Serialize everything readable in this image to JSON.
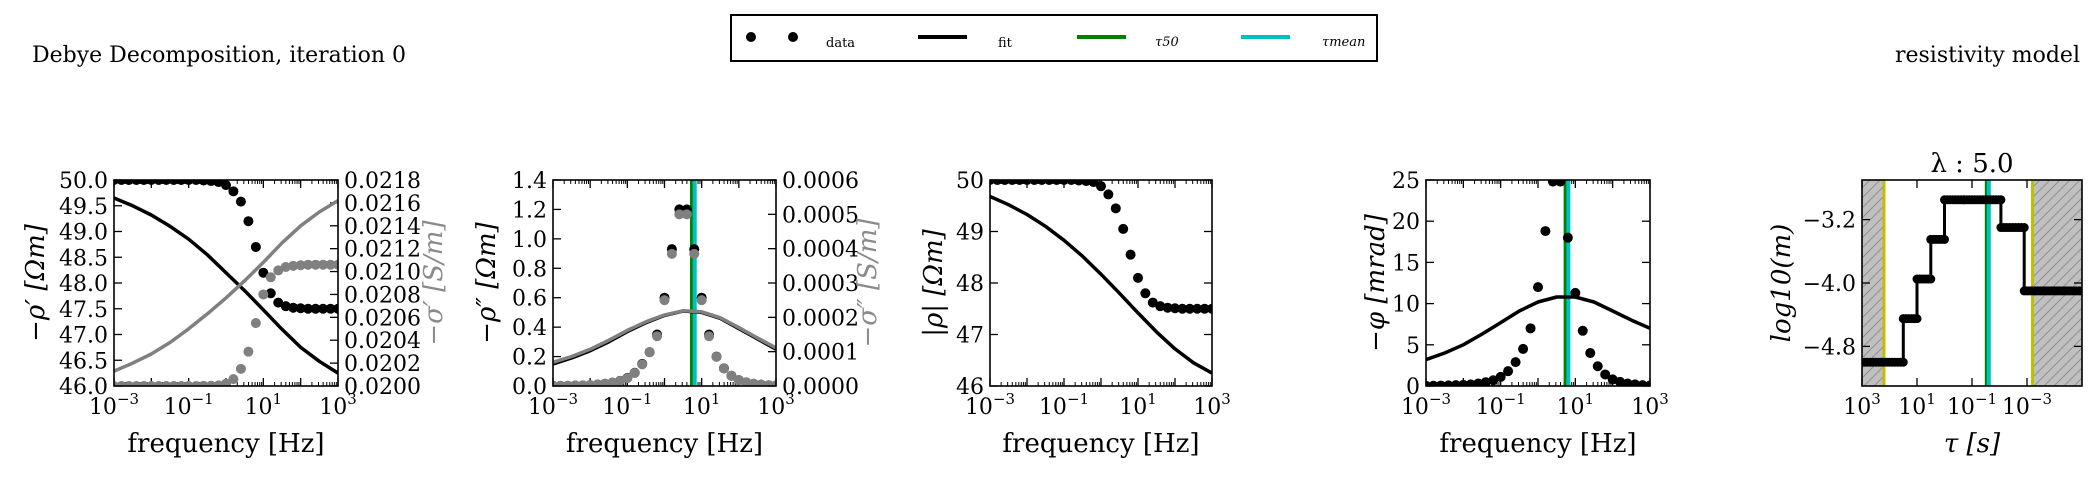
{
  "figure": {
    "left_title": "Debye Decomposition, iteration 0",
    "right_title": "resistivity model"
  },
  "legend": {
    "items": [
      {
        "label": "data",
        "kind": "markers",
        "color": "#000000"
      },
      {
        "label": "fit",
        "kind": "line",
        "color": "#000000"
      },
      {
        "label": "τ50",
        "kind": "line",
        "color": "#008000"
      },
      {
        "label": "τmean",
        "kind": "line",
        "color": "#00bfbf"
      }
    ]
  },
  "colors": {
    "data": "#000000",
    "data_secondary": "#808080",
    "fit": "#000000",
    "fit_secondary": "#808080",
    "tau50": "#008000",
    "taumean": "#00bfbf",
    "limits": "#bfbf00",
    "hatch_fill": "#c0c0c0"
  },
  "chart_data": [
    {
      "type": "line",
      "id": "real_part",
      "xlabel": "frequency [Hz]",
      "ylabel": "−ρ′ [Ωm]",
      "y2label": "−σ′ [S/m]",
      "xscale": "log",
      "xlim": [
        0.001,
        1000
      ],
      "ylim": [
        46.0,
        50.0
      ],
      "y2lim": [
        0.02,
        0.0218
      ],
      "xticks": [
        "10−3",
        "10−1",
        "101",
        "103"
      ],
      "yticks": [
        "46.0",
        "46.5",
        "47.0",
        "47.5",
        "48.0",
        "48.5",
        "49.0",
        "49.5",
        "50.0"
      ],
      "y2ticks": [
        "0.0200",
        "0.0202",
        "0.0204",
        "0.0206",
        "0.0208",
        "0.0210",
        "0.0212",
        "0.0214",
        "0.0216",
        "0.0218"
      ],
      "series": [
        {
          "name": "data",
          "axis": "left",
          "style": "markers",
          "x": [
            0.001,
            0.00158,
            0.00251,
            0.00398,
            0.00631,
            0.01,
            0.0158,
            0.0251,
            0.0398,
            0.0631,
            0.1,
            0.158,
            0.251,
            0.398,
            0.631,
            1.0,
            1.58,
            2.51,
            3.98,
            6.31,
            10,
            15.8,
            25.1,
            39.8,
            63.1,
            100,
            158,
            251,
            398,
            631,
            1000
          ],
          "y": [
            50.0,
            50.0,
            50.0,
            50.0,
            50.0,
            50.0,
            50.0,
            50.0,
            50.0,
            50.0,
            50.0,
            50.0,
            49.99,
            49.98,
            49.96,
            49.9,
            49.78,
            49.58,
            49.2,
            48.7,
            48.2,
            47.8,
            47.62,
            47.55,
            47.52,
            47.51,
            47.5,
            47.5,
            47.5,
            47.5,
            47.5
          ]
        },
        {
          "name": "data",
          "axis": "right",
          "style": "markers-grey",
          "x": [
            0.001,
            0.00158,
            0.00251,
            0.00398,
            0.00631,
            0.01,
            0.0158,
            0.0251,
            0.0398,
            0.0631,
            0.1,
            0.158,
            0.251,
            0.398,
            0.631,
            1.0,
            1.58,
            2.51,
            3.98,
            6.31,
            10,
            15.8,
            25.1,
            39.8,
            63.1,
            100,
            158,
            251,
            398,
            631,
            1000
          ],
          "y": [
            0.02,
            0.02,
            0.02,
            0.02,
            0.02,
            0.02,
            0.02,
            0.02,
            0.02,
            0.02,
            0.02,
            0.02,
            0.020001,
            0.020002,
            0.020005,
            0.02002,
            0.02006,
            0.02015,
            0.0203,
            0.02055,
            0.0208,
            0.02095,
            0.02101,
            0.02104,
            0.02105,
            0.021055,
            0.02106,
            0.02106,
            0.02106,
            0.02106,
            0.02106
          ]
        },
        {
          "name": "fit",
          "axis": "left",
          "style": "line",
          "x": [
            0.001,
            0.00316,
            0.01,
            0.0316,
            0.1,
            0.316,
            1,
            3.16,
            10,
            31.6,
            100,
            316,
            1000
          ],
          "y": [
            49.65,
            49.5,
            49.32,
            49.1,
            48.85,
            48.55,
            48.2,
            47.85,
            47.48,
            47.1,
            46.75,
            46.48,
            46.25
          ]
        },
        {
          "name": "fit",
          "axis": "right",
          "style": "line-grey",
          "x": [
            0.001,
            0.00316,
            0.01,
            0.0316,
            0.1,
            0.316,
            1,
            3.16,
            10,
            31.6,
            100,
            316,
            1000
          ],
          "y": [
            0.02013,
            0.0202,
            0.02028,
            0.02038,
            0.0205,
            0.02063,
            0.02077,
            0.02092,
            0.02108,
            0.02125,
            0.0214,
            0.02152,
            0.02162
          ]
        }
      ]
    },
    {
      "type": "line",
      "id": "imag_part",
      "xlabel": "frequency [Hz]",
      "ylabel": "−ρ″ [Ωm]",
      "y2label": "−σ″ [S/m]",
      "xscale": "log",
      "xlim": [
        0.001,
        1000
      ],
      "ylim": [
        0.0,
        1.4
      ],
      "y2lim": [
        0.0,
        0.0006
      ],
      "xticks": [
        "10−3",
        "10−1",
        "101",
        "103"
      ],
      "yticks": [
        "0.0",
        "0.2",
        "0.4",
        "0.6",
        "0.8",
        "1.0",
        "1.2",
        "1.4"
      ],
      "y2ticks": [
        "0.0000",
        "0.0001",
        "0.0002",
        "0.0003",
        "0.0004",
        "0.0005",
        "0.0006"
      ],
      "tau50_f": 5.5,
      "taumean_f": 6.5,
      "series": [
        {
          "name": "data",
          "axis": "left",
          "style": "markers",
          "x": [
            0.001,
            0.00158,
            0.00251,
            0.00398,
            0.00631,
            0.01,
            0.0158,
            0.0251,
            0.0398,
            0.0631,
            0.1,
            0.158,
            0.251,
            0.398,
            0.631,
            1.0,
            1.58,
            2.51,
            3.98,
            6.31,
            10,
            15.8,
            25.1,
            39.8,
            63.1,
            100,
            158,
            251,
            398,
            631,
            1000
          ],
          "y": [
            0.001,
            0.001,
            0.002,
            0.003,
            0.004,
            0.006,
            0.01,
            0.015,
            0.023,
            0.035,
            0.055,
            0.09,
            0.15,
            0.23,
            0.35,
            0.6,
            0.93,
            1.2,
            1.2,
            0.93,
            0.6,
            0.35,
            0.2,
            0.12,
            0.07,
            0.04,
            0.025,
            0.015,
            0.009,
            0.005,
            0.003
          ]
        },
        {
          "name": "data",
          "axis": "right",
          "style": "markers-grey",
          "x": [
            0.001,
            0.00158,
            0.00251,
            0.00398,
            0.00631,
            0.01,
            0.0158,
            0.0251,
            0.0398,
            0.0631,
            0.1,
            0.158,
            0.251,
            0.398,
            0.631,
            1.0,
            1.58,
            2.51,
            3.98,
            6.31,
            10,
            15.8,
            25.1,
            39.8,
            63.1,
            100,
            158,
            251,
            398,
            631,
            1000
          ],
          "y": [
            4e-07,
            4e-07,
            9e-07,
            1.3e-06,
            1.7e-06,
            2.6e-06,
            4.3e-06,
            6.4e-06,
            9.9e-06,
            1.5e-05,
            2.3e-05,
            3.8e-05,
            6.3e-05,
            9.85e-05,
            0.000145,
            0.00025,
            0.000385,
            0.0005,
            0.0005,
            0.000385,
            0.00025,
            0.000145,
            8.5e-05,
            5.1e-05,
            3e-05,
            1.7e-05,
            1.1e-05,
            6.4e-06,
            3.8e-06,
            2.1e-06,
            1.3e-06
          ]
        },
        {
          "name": "fit",
          "axis": "left",
          "style": "line",
          "x": [
            0.001,
            0.00316,
            0.01,
            0.0316,
            0.1,
            0.316,
            1,
            3.16,
            10,
            31.6,
            100,
            316,
            1000
          ],
          "y": [
            0.15,
            0.19,
            0.24,
            0.3,
            0.37,
            0.43,
            0.48,
            0.51,
            0.5,
            0.46,
            0.39,
            0.32,
            0.25
          ]
        },
        {
          "name": "fit",
          "axis": "right",
          "style": "line-grey",
          "x": [
            0.001,
            0.00316,
            0.01,
            0.0316,
            0.1,
            0.316,
            1,
            3.16,
            10,
            31.6,
            100,
            316,
            1000
          ],
          "y": [
            6.9e-05,
            8.6e-05,
            0.000107,
            0.000133,
            0.000162,
            0.000187,
            0.000207,
            0.000219,
            0.000216,
            0.000199,
            0.00017,
            0.00014,
            0.000111
          ]
        }
      ]
    },
    {
      "type": "line",
      "id": "magnitude",
      "xlabel": "frequency [Hz]",
      "ylabel": "|ρ| [Ωm]",
      "xscale": "log",
      "xlim": [
        0.001,
        1000
      ],
      "ylim": [
        46,
        50
      ],
      "xticks": [
        "10−3",
        "10−1",
        "101",
        "103"
      ],
      "yticks": [
        "46",
        "47",
        "48",
        "49",
        "50"
      ],
      "series": [
        {
          "name": "data",
          "axis": "left",
          "style": "markers",
          "x": [
            0.001,
            0.00158,
            0.00251,
            0.00398,
            0.00631,
            0.01,
            0.0158,
            0.0251,
            0.0398,
            0.0631,
            0.1,
            0.158,
            0.251,
            0.398,
            0.631,
            1.0,
            1.58,
            2.51,
            3.98,
            6.31,
            10,
            15.8,
            25.1,
            39.8,
            63.1,
            100,
            158,
            251,
            398,
            631,
            1000
          ],
          "y": [
            50.0,
            50.0,
            50.0,
            50.0,
            50.0,
            50.0,
            50.0,
            50.0,
            50.0,
            50.0,
            50.0,
            50.0,
            49.99,
            49.98,
            49.96,
            49.88,
            49.72,
            49.45,
            49.05,
            48.55,
            48.1,
            47.8,
            47.62,
            47.55,
            47.52,
            47.51,
            47.5,
            47.5,
            47.5,
            47.5,
            47.5
          ]
        },
        {
          "name": "fit",
          "axis": "left",
          "style": "line",
          "x": [
            0.001,
            0.00316,
            0.01,
            0.0316,
            0.1,
            0.316,
            1,
            3.16,
            10,
            31.6,
            100,
            316,
            1000
          ],
          "y": [
            49.68,
            49.52,
            49.33,
            49.1,
            48.83,
            48.52,
            48.17,
            47.8,
            47.42,
            47.05,
            46.72,
            46.45,
            46.25
          ]
        }
      ]
    },
    {
      "type": "line",
      "id": "phase",
      "xlabel": "frequency [Hz]",
      "ylabel": "−φ [mrad]",
      "xscale": "log",
      "xlim": [
        0.001,
        1000
      ],
      "ylim": [
        0,
        25
      ],
      "xticks": [
        "10−3",
        "10−1",
        "101",
        "103"
      ],
      "yticks": [
        "0",
        "5",
        "10",
        "15",
        "20",
        "25"
      ],
      "tau50_f": 5.5,
      "taumean_f": 6.5,
      "series": [
        {
          "name": "data",
          "axis": "left",
          "style": "markers",
          "x": [
            0.001,
            0.00158,
            0.00251,
            0.00398,
            0.00631,
            0.01,
            0.0158,
            0.0251,
            0.0398,
            0.0631,
            0.1,
            0.158,
            0.251,
            0.398,
            0.631,
            1.0,
            1.58,
            2.51,
            3.98,
            6.31,
            10,
            15.8,
            25.1,
            39.8,
            63.1,
            100,
            158,
            251,
            398,
            631,
            1000
          ],
          "y": [
            0.02,
            0.03,
            0.05,
            0.07,
            0.1,
            0.14,
            0.2,
            0.3,
            0.45,
            0.7,
            1.1,
            1.8,
            2.9,
            4.5,
            7.0,
            12.0,
            18.8,
            24.8,
            24.8,
            18.0,
            11.3,
            6.7,
            4.0,
            2.4,
            1.4,
            0.8,
            0.5,
            0.3,
            0.2,
            0.1,
            0.06
          ]
        },
        {
          "name": "fit",
          "axis": "left",
          "style": "line",
          "x": [
            0.001,
            0.00316,
            0.01,
            0.0316,
            0.1,
            0.316,
            1,
            3.16,
            10,
            31.6,
            100,
            316,
            1000
          ],
          "y": [
            3.2,
            4.0,
            5.0,
            6.3,
            7.7,
            9.1,
            10.2,
            10.8,
            10.8,
            10.2,
            9.1,
            8.0,
            7.0
          ]
        }
      ]
    },
    {
      "type": "line",
      "id": "resistivity_model",
      "title": "λ : 5.0",
      "xlabel": "τ [s]",
      "ylabel": "log10(m)",
      "xscale": "log",
      "xaxis_inverted": true,
      "xtick_positions": [
        1000,
        10,
        0.1,
        0.001
      ],
      "xticks": [
        "103",
        "101",
        "10−1",
        "10−3"
      ],
      "ytick_values": [
        -3.2,
        -4.0,
        -4.8
      ],
      "yticks": [
        "−3.2",
        "−4.0",
        "−4.8"
      ],
      "xlim": [
        1000,
        1e-05
      ],
      "ylim": [
        -5.3,
        -2.7
      ],
      "shaded_regions": [
        [
          1000,
          159
        ],
        [
          0.00063,
          1e-05
        ]
      ],
      "limits_tau": [
        159,
        0.00063
      ],
      "tau50": 0.0289,
      "taumean": 0.0245,
      "series": [
        {
          "name": "m",
          "style": "step-markers",
          "steps": [
            [
              1000,
              31.6,
              -5.0
            ],
            [
              31.6,
              10,
              -4.45
            ],
            [
              10,
              3.16,
              -3.95
            ],
            [
              3.16,
              1.0,
              -3.45
            ],
            [
              1.0,
              0.2,
              -2.95
            ],
            [
              0.2,
              0.0316,
              -2.95
            ],
            [
              0.0316,
              0.0089,
              -2.95
            ],
            [
              0.0089,
              0.00126,
              -3.3
            ],
            [
              0.00126,
              1e-05,
              -4.1
            ]
          ]
        }
      ]
    }
  ]
}
